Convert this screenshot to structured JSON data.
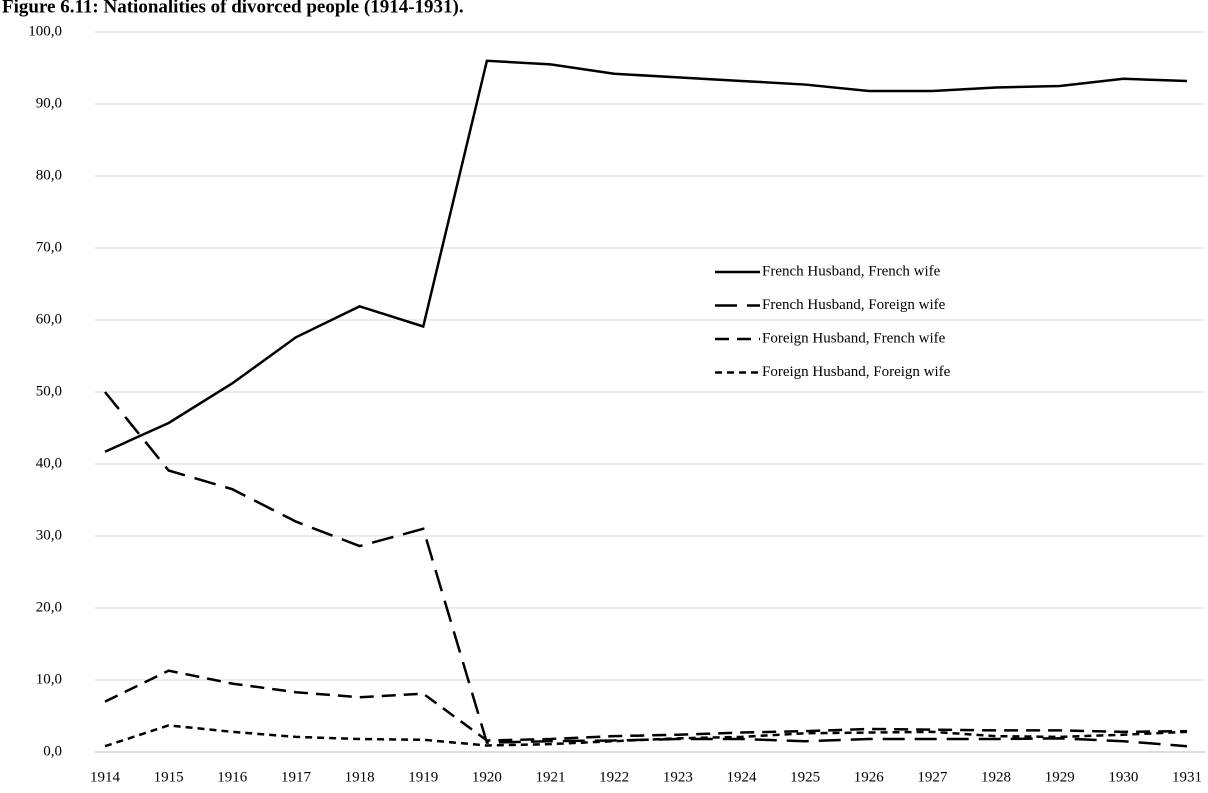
{
  "chart_data": {
    "type": "line",
    "title": "Figure 6.11: Nationalities of divorced people (1914-1931).",
    "categories": [
      "1914",
      "1915",
      "1916",
      "1917",
      "1918",
      "1919",
      "1920",
      "1921",
      "1922",
      "1923",
      "1924",
      "1925",
      "1926",
      "1927",
      "1928",
      "1929",
      "1930",
      "1931"
    ],
    "series": [
      {
        "name": "French Husband, French wife",
        "color": "#000000",
        "style": "solid",
        "values": [
          41.7,
          45.7,
          51.2,
          57.6,
          61.9,
          59.1,
          96.0,
          95.5,
          94.2,
          93.7,
          93.2,
          92.7,
          91.8,
          91.8,
          92.3,
          92.5,
          93.5,
          93.2
        ]
      },
      {
        "name": "French Husband, Foreign wife",
        "color": "#000000",
        "style": "long-dash",
        "values": [
          50.0,
          39.1,
          36.5,
          32.0,
          28.6,
          31.0,
          1.3,
          1.5,
          1.6,
          1.8,
          1.8,
          1.5,
          1.8,
          1.8,
          1.8,
          1.9,
          1.5,
          0.8
        ]
      },
      {
        "name": "Foreign Husband, French wife",
        "color": "#000000",
        "style": "dash",
        "values": [
          7.0,
          11.3,
          9.5,
          8.3,
          7.6,
          8.1,
          1.6,
          1.8,
          2.2,
          2.4,
          2.7,
          2.9,
          3.2,
          3.1,
          3.0,
          3.0,
          2.8,
          2.9
        ]
      },
      {
        "name": "Foreign Husband, Foreign wife",
        "color": "#000000",
        "style": "short-dash",
        "values": [
          0.8,
          3.7,
          2.8,
          2.1,
          1.8,
          1.7,
          0.9,
          1.1,
          1.5,
          1.9,
          2.1,
          2.6,
          2.7,
          2.8,
          2.2,
          2.1,
          2.4,
          2.8
        ]
      }
    ],
    "ylim": [
      0,
      100
    ],
    "yticks": [
      {
        "value": 0,
        "label": "0,0"
      },
      {
        "value": 10,
        "label": "10,0"
      },
      {
        "value": 20,
        "label": "20,0"
      },
      {
        "value": 30,
        "label": "30,0"
      },
      {
        "value": 40,
        "label": "40,0"
      },
      {
        "value": 50,
        "label": "50,0"
      },
      {
        "value": 60,
        "label": "60,0"
      },
      {
        "value": 70,
        "label": "70,0"
      },
      {
        "value": 80,
        "label": "80,0"
      },
      {
        "value": 90,
        "label": "90,0"
      },
      {
        "value": 100,
        "label": "100,0"
      }
    ],
    "grid": true
  }
}
